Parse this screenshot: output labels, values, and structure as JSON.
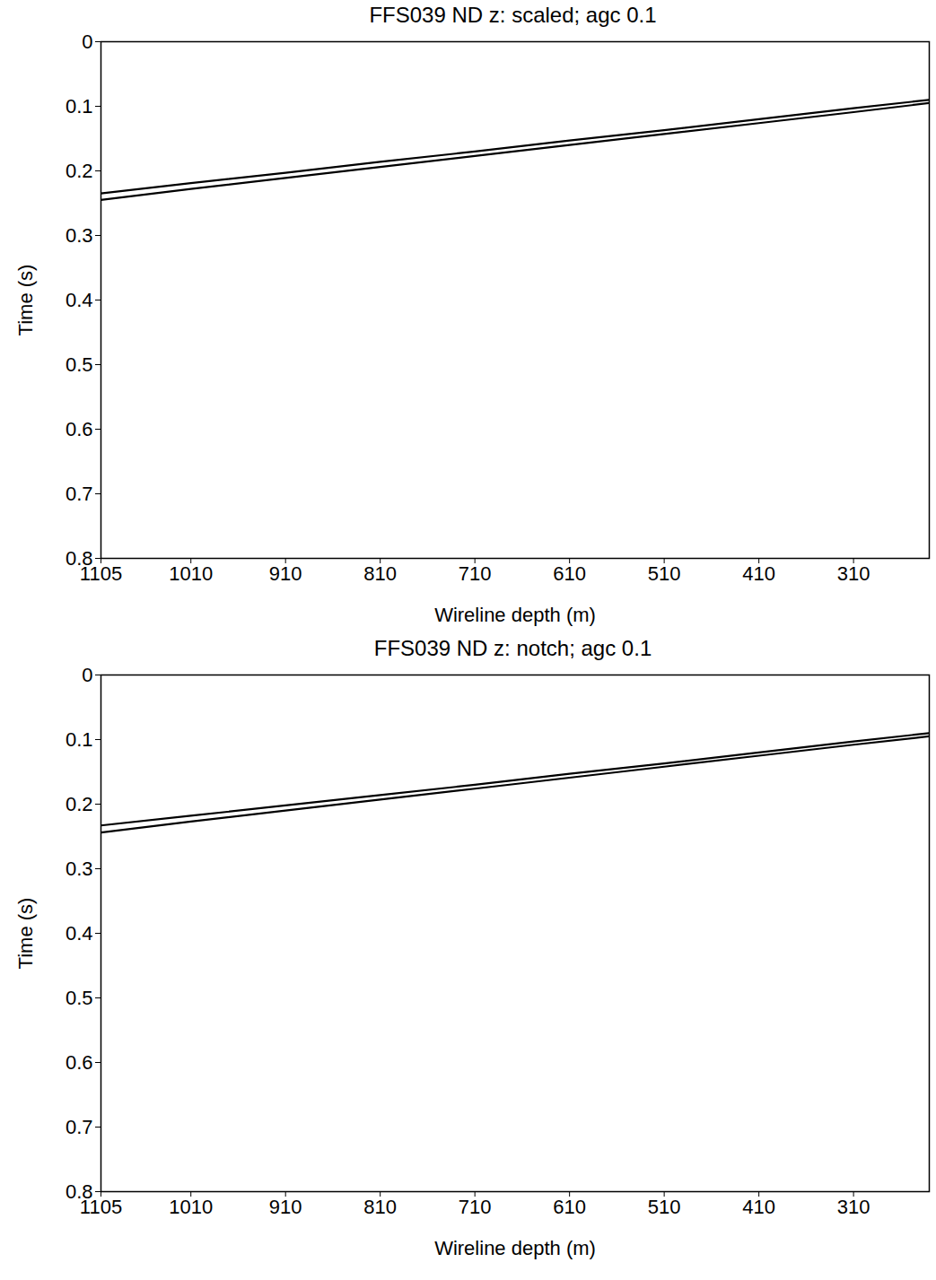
{
  "chart_data": [
    {
      "type": "line",
      "title": "FFS039 ND z: scaled; agc 0.1",
      "x_label": "Wireline depth (m)",
      "y_label": "Time (s)",
      "x": [
        1105,
        1010,
        910,
        810,
        710,
        610,
        510,
        410,
        310,
        230
      ],
      "series": [
        {
          "color": "#000000",
          "line_style": "solid",
          "values": [
            0.235,
            0.219,
            0.203,
            0.186,
            0.17,
            0.153,
            0.137,
            0.12,
            0.103,
            0.09
          ]
        },
        {
          "color": "#000000",
          "line_style": "solid",
          "values": [
            0.245,
            0.228,
            0.211,
            0.194,
            0.177,
            0.16,
            0.143,
            0.126,
            0.109,
            0.095
          ]
        }
      ],
      "xlim": [
        1105,
        230
      ],
      "xticks": [
        1105,
        1010,
        910,
        810,
        710,
        610,
        510,
        410,
        310
      ],
      "ylim": [
        0.8,
        0
      ],
      "yticks": [
        0,
        0.1,
        0.2,
        0.3,
        0.4,
        0.5,
        0.6,
        0.7,
        0.8
      ],
      "grid": false
    },
    {
      "type": "line",
      "title": "FFS039 ND z: notch; agc 0.1",
      "x_label": "Wireline depth (m)",
      "y_label": "Time (s)",
      "x": [
        1105,
        1010,
        910,
        810,
        710,
        610,
        510,
        410,
        310,
        230
      ],
      "series": [
        {
          "color": "#000000",
          "line_style": "solid",
          "values": [
            0.233,
            0.218,
            0.202,
            0.186,
            0.17,
            0.153,
            0.137,
            0.12,
            0.103,
            0.09
          ]
        },
        {
          "color": "#000000",
          "line_style": "solid",
          "values": [
            0.244,
            0.227,
            0.21,
            0.193,
            0.176,
            0.159,
            0.142,
            0.125,
            0.108,
            0.095
          ]
        }
      ],
      "xlim": [
        1105,
        230
      ],
      "xticks": [
        1105,
        1010,
        910,
        810,
        710,
        610,
        510,
        410,
        310
      ],
      "ylim": [
        0.8,
        0
      ],
      "yticks": [
        0,
        0.1,
        0.2,
        0.3,
        0.4,
        0.5,
        0.6,
        0.7,
        0.8
      ],
      "grid": false
    }
  ]
}
